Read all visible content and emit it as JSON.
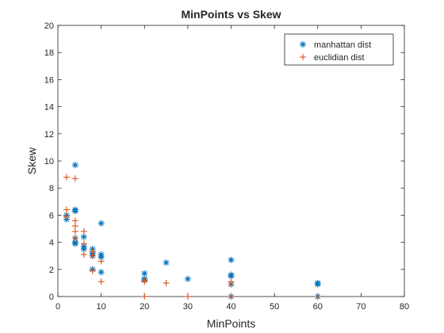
{
  "chart_data": {
    "type": "scatter",
    "title": "MinPoints vs Skew",
    "xlabel": "MinPoints",
    "ylabel": "Skew",
    "xlim": [
      0,
      80
    ],
    "ylim": [
      0,
      20
    ],
    "xticks": [
      0,
      10,
      20,
      30,
      40,
      50,
      60,
      70,
      80
    ],
    "yticks": [
      0,
      2,
      4,
      6,
      8,
      10,
      12,
      14,
      16,
      18,
      20
    ],
    "grid": false,
    "legend_position": "top-right",
    "series": [
      {
        "name": "manhattan dist",
        "marker": "asterisk",
        "color": "#0072BD",
        "points": [
          [
            2,
            5.7
          ],
          [
            2,
            6.0
          ],
          [
            4,
            9.7
          ],
          [
            4,
            6.4
          ],
          [
            4,
            6.3
          ],
          [
            4,
            4.3
          ],
          [
            4,
            4.0
          ],
          [
            4,
            3.9
          ],
          [
            6,
            4.4
          ],
          [
            6,
            3.7
          ],
          [
            6,
            3.5
          ],
          [
            8,
            3.5
          ],
          [
            8,
            3.2
          ],
          [
            8,
            3.0
          ],
          [
            8,
            2.0
          ],
          [
            10,
            5.4
          ],
          [
            10,
            3.1
          ],
          [
            10,
            2.9
          ],
          [
            10,
            1.8
          ],
          [
            20,
            1.7
          ],
          [
            20,
            1.3
          ],
          [
            20,
            1.2
          ],
          [
            25,
            2.5
          ],
          [
            30,
            1.3
          ],
          [
            40,
            2.7
          ],
          [
            40,
            1.6
          ],
          [
            40,
            1.5
          ],
          [
            40,
            0.9
          ],
          [
            40,
            0.0
          ],
          [
            60,
            1.0
          ],
          [
            60,
            0.9
          ],
          [
            60,
            0.0
          ]
        ]
      },
      {
        "name": "euclidian dist",
        "marker": "plus",
        "color": "#D95319",
        "points": [
          [
            2,
            8.8
          ],
          [
            2,
            6.4
          ],
          [
            2,
            5.9
          ],
          [
            4,
            8.7
          ],
          [
            4,
            5.6
          ],
          [
            4,
            5.2
          ],
          [
            4,
            4.8
          ],
          [
            4,
            4.3
          ],
          [
            6,
            4.8
          ],
          [
            6,
            3.9
          ],
          [
            6,
            3.1
          ],
          [
            8,
            3.3
          ],
          [
            8,
            3.0
          ],
          [
            8,
            1.9
          ],
          [
            10,
            2.6
          ],
          [
            10,
            1.1
          ],
          [
            20,
            1.2
          ],
          [
            20,
            1.1
          ],
          [
            20,
            0.0
          ],
          [
            25,
            1.0
          ],
          [
            30,
            0.0
          ],
          [
            40,
            1.1
          ],
          [
            40,
            0.9
          ],
          [
            40,
            0.0
          ],
          [
            60,
            0.0
          ]
        ]
      }
    ]
  }
}
